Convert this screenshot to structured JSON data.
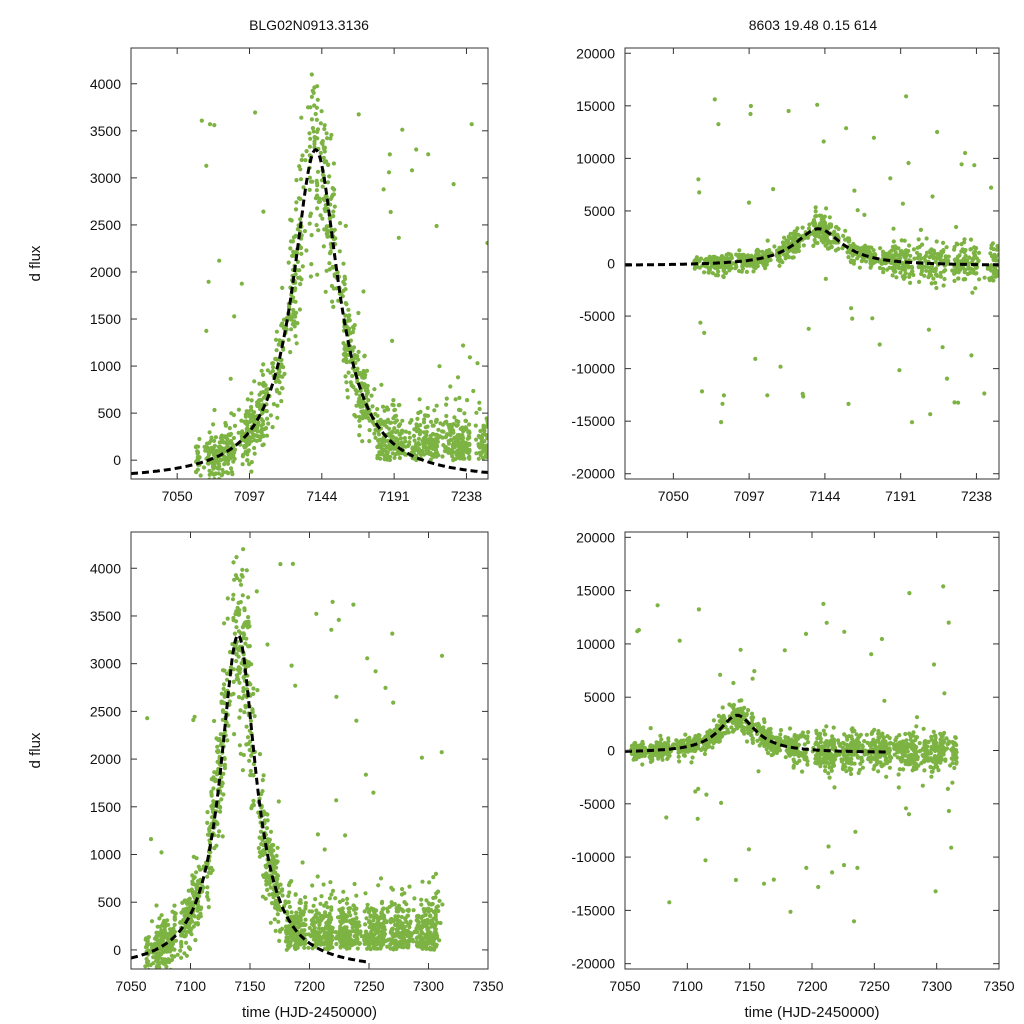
{
  "figure": {
    "title_left": "BLG02N0913.3136",
    "title_right": "8603  19.48  0.15  614"
  },
  "colors": {
    "points": "#7cb342",
    "model": "#000000",
    "frame": "#333333"
  },
  "chart_data": [
    {
      "id": "top-left",
      "type": "scatter",
      "title": "BLG02N0913.3136",
      "xlabel": "",
      "ylabel": "d flux",
      "xlim": [
        7020,
        7252
      ],
      "ylim": [
        -200,
        4380
      ],
      "xticks": [
        7050,
        7097,
        7144,
        7191,
        7238
      ],
      "yticks": [
        0,
        500,
        1000,
        1500,
        2000,
        2500,
        3000,
        3500,
        4000
      ],
      "model": {
        "t0": 7140,
        "peak": 3520,
        "base": -220,
        "width": 18
      },
      "scatter": {
        "seed": 11,
        "segments": [
          [
            7062,
            7240
          ],
          [
            7244,
            7252
          ]
        ],
        "noise": "narrow",
        "outliers": 40
      }
    },
    {
      "id": "top-right",
      "type": "scatter",
      "title": "8603  19.48  0.15  614",
      "xlabel": "",
      "ylabel": "",
      "xlim": [
        7020,
        7252
      ],
      "ylim": [
        -20500,
        20500
      ],
      "xticks": [
        7050,
        7097,
        7144,
        7191,
        7238
      ],
      "yticks": [
        -20000,
        -15000,
        -10000,
        -5000,
        0,
        5000,
        10000,
        15000,
        20000
      ],
      "model": {
        "t0": 7140,
        "peak": 3520,
        "base": -220,
        "width": 18
      },
      "scatter": {
        "seed": 23,
        "segments": [
          [
            7063,
            7240
          ],
          [
            7243,
            7252
          ]
        ],
        "noise": "wide",
        "outliers": 55
      }
    },
    {
      "id": "bottom-left",
      "type": "scatter",
      "title": "",
      "xlabel": "time (HJD-2450000)",
      "ylabel": "d flux",
      "xlim": [
        7050,
        7350
      ],
      "ylim": [
        -200,
        4380
      ],
      "xticks": [
        7050,
        7100,
        7150,
        7200,
        7250,
        7300,
        7350
      ],
      "yticks": [
        0,
        500,
        1000,
        1500,
        2000,
        2500,
        3000,
        3500,
        4000
      ],
      "model": {
        "t0": 7140,
        "peak": 3520,
        "base": -220,
        "width": 18
      },
      "scatter": {
        "seed": 37,
        "segments": [
          [
            7062,
            7312
          ]
        ],
        "noise": "narrow",
        "outliers": 45
      }
    },
    {
      "id": "bottom-right",
      "type": "scatter",
      "title": "",
      "xlabel": "time (HJD-2450000)",
      "ylabel": "",
      "xlim": [
        7050,
        7350
      ],
      "ylim": [
        -20500,
        20500
      ],
      "xticks": [
        7050,
        7100,
        7150,
        7200,
        7250,
        7300,
        7350
      ],
      "yticks": [
        -20000,
        -15000,
        -10000,
        -5000,
        0,
        5000,
        10000,
        15000,
        20000
      ],
      "model": {
        "t0": 7140,
        "peak": 3520,
        "base": -220,
        "width": 18
      },
      "scatter": {
        "seed": 51,
        "segments": [
          [
            7055,
            7316
          ]
        ],
        "noise": "wide",
        "outliers": 55
      }
    }
  ]
}
